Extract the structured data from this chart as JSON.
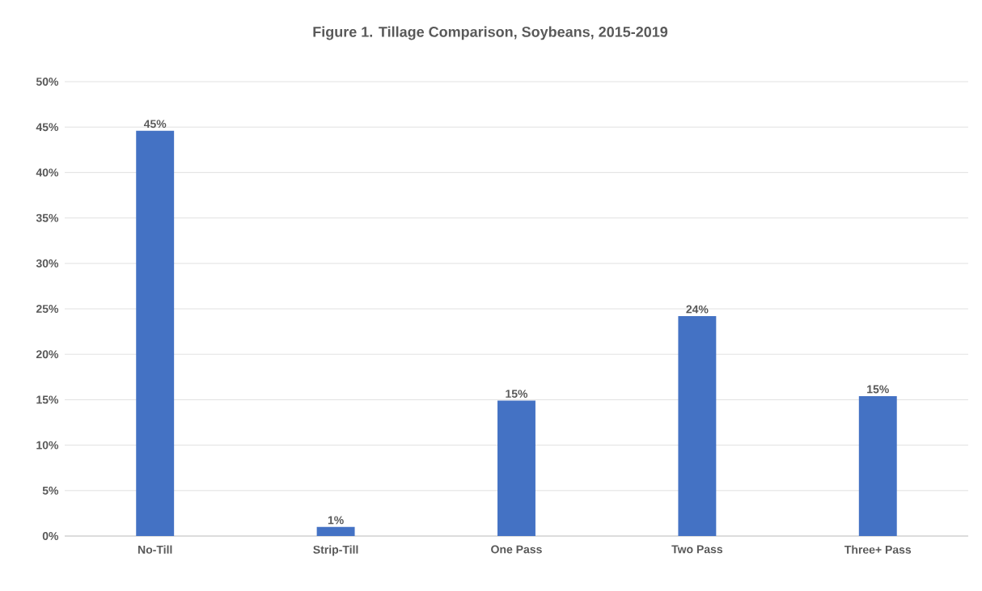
{
  "chart_data": {
    "type": "bar",
    "title": "Figure 1. Tillage  Comparison, Soybeans, 2015-2019",
    "categories": [
      "No-Till",
      "Strip-Till",
      "One Pass",
      "Two Pass",
      "Three+ Pass"
    ],
    "values": [
      44.6,
      1.0,
      14.9,
      24.2,
      15.4
    ],
    "value_labels": [
      "45%",
      "1%",
      "15%",
      "24%",
      "15%"
    ],
    "color": "#4472c4",
    "ylim": [
      0,
      50
    ],
    "yticks": [
      {
        "value": 0,
        "label": "0%"
      },
      {
        "value": 5,
        "label": "5%"
      },
      {
        "value": 10,
        "label": "10%"
      },
      {
        "value": 15,
        "label": "15%"
      },
      {
        "value": 20,
        "label": "20%"
      },
      {
        "value": 25,
        "label": "25%"
      },
      {
        "value": 30,
        "label": "30%"
      },
      {
        "value": 35,
        "label": "35%"
      },
      {
        "value": 40,
        "label": "40%"
      },
      {
        "value": 45,
        "label": "45%"
      },
      {
        "value": 50,
        "label": "50%"
      }
    ],
    "grid": "y"
  }
}
